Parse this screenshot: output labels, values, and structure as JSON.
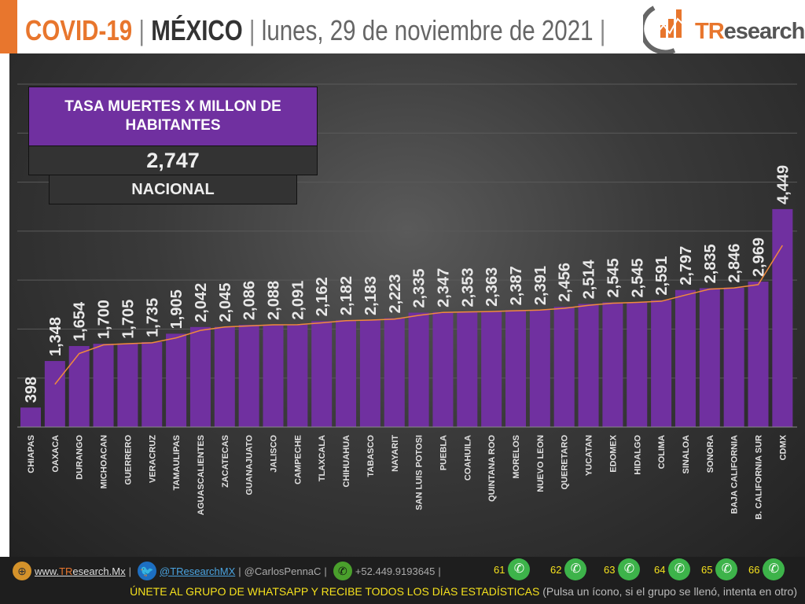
{
  "header": {
    "title": "COVID-19",
    "sep": "|",
    "country": "MÉXICO",
    "date": "lunes, 29 de noviembre de 2021",
    "logo": "TResearch",
    "accent": "#e8762d"
  },
  "kpi": {
    "title": "TASA MUERTES X MILLON DE HABITANTES",
    "value": "2,747",
    "label": "NACIONAL"
  },
  "chart_data": {
    "type": "bar",
    "title": "",
    "xlabel": "",
    "ylabel": "",
    "ylim": [
      0,
      7000
    ],
    "grid": true,
    "bar_color": "#7030a0",
    "trendline": {
      "type": "moving-average",
      "period": 2,
      "color": "#f08a3c"
    },
    "categories": [
      "CHIAPAS",
      "OAXACA",
      "DURANGO",
      "MICHOACAN",
      "GUERRERO",
      "VERACRUZ",
      "TAMAULIPAS",
      "AGUASCALIENTES",
      "ZACATECAS",
      "GUANAJUATO",
      "JALISCO",
      "CAMPECHE",
      "TLAXCALA",
      "CHIHUAHUA",
      "TABASCO",
      "NAYARIT",
      "SAN LUIS POTOSI",
      "PUEBLA",
      "COAHUILA",
      "QUINTANA ROO",
      "MORELOS",
      "NUEVO LEON",
      "QUERETARO",
      "YUCATAN",
      "EDOMEX",
      "HIDALGO",
      "COLIMA",
      "SINALOA",
      "SONORA",
      "BAJA CALIFORNIA",
      "B. CALIFORNIA SUR",
      "CDMX"
    ],
    "values": [
      398,
      1348,
      1654,
      1700,
      1705,
      1735,
      1905,
      2042,
      2045,
      2086,
      2088,
      2091,
      2162,
      2182,
      2183,
      2223,
      2335,
      2347,
      2353,
      2363,
      2387,
      2391,
      2456,
      2514,
      2545,
      2545,
      2591,
      2797,
      2835,
      2846,
      2969,
      4449
    ]
  },
  "footer": {
    "web": "www.TResearch.Mx",
    "web_prefix": "www.",
    "web_brand": "TR",
    "web_rest": "esearch.Mx",
    "twitter": "@TResearchMX",
    "handle": "@CarlosPennaC",
    "phone": "+52.449.9193645",
    "whatsapp_groups": [
      "61",
      "62",
      "63",
      "64",
      "65",
      "66"
    ],
    "cta": "ÚNETE AL GRUPO DE WHATSAPP Y RECIBE TODOS LOS DÍAS ESTADÍSTICAS",
    "cta_note": "(Pulsa un ícono, si el grupo se llenó, intenta en otro)"
  }
}
